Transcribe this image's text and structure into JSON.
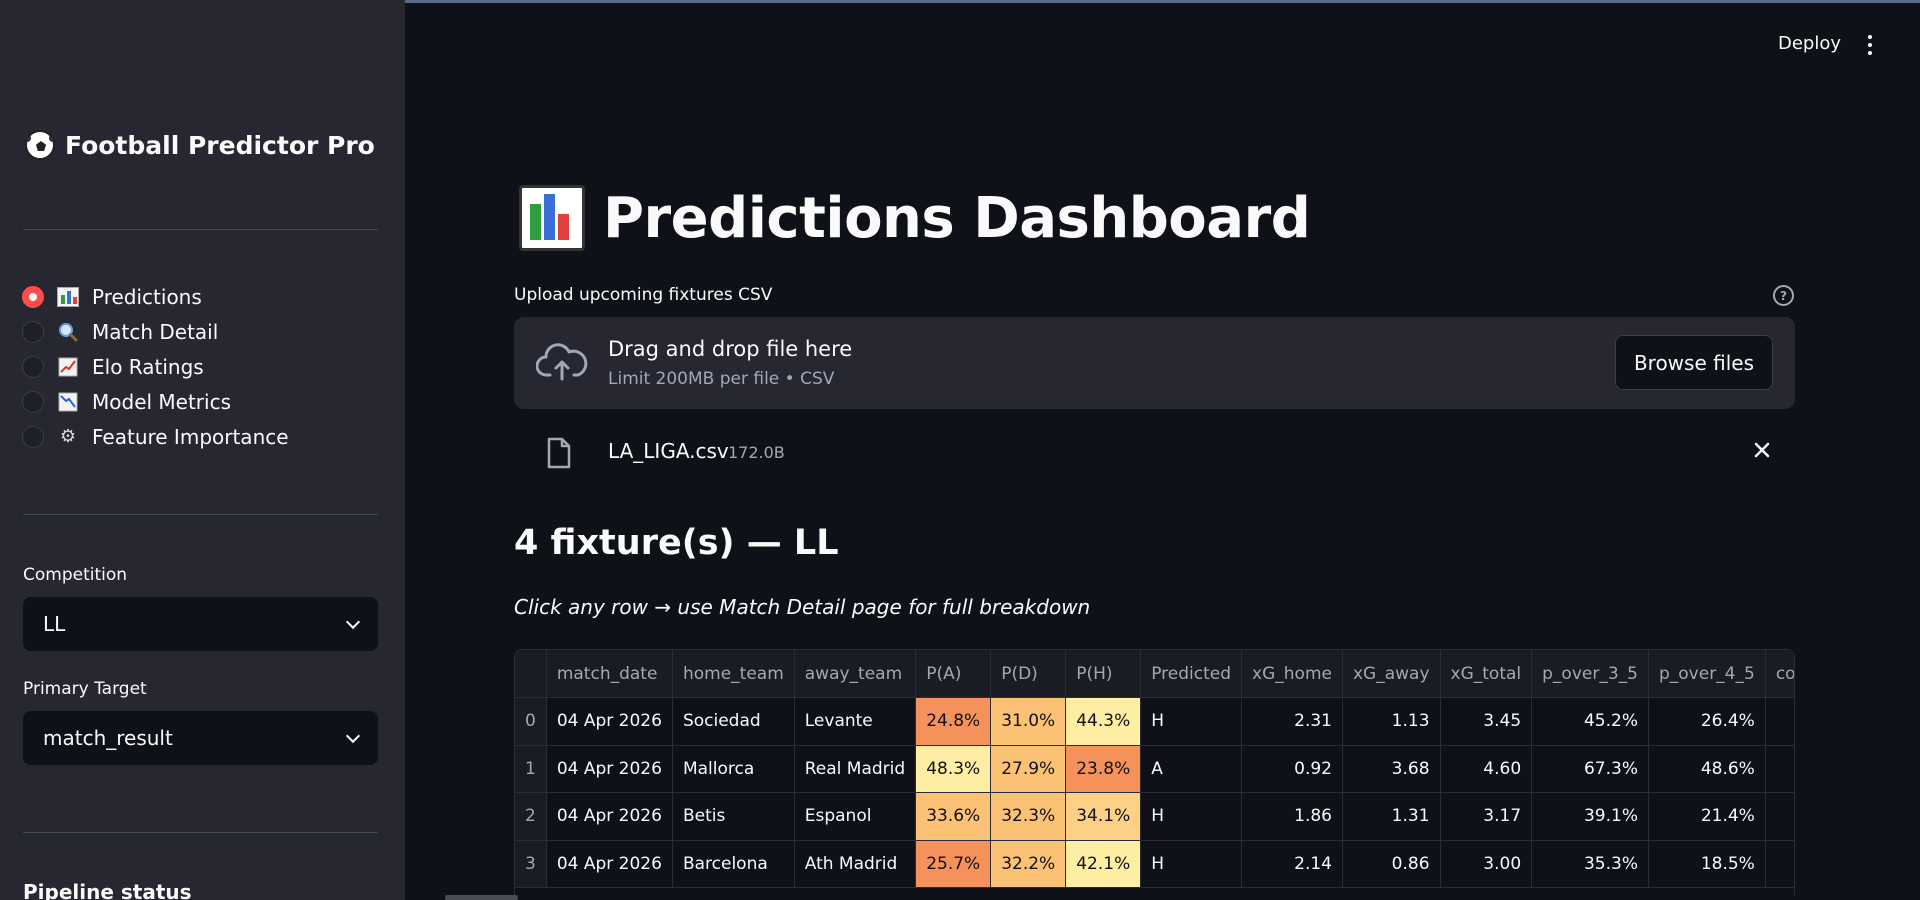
{
  "app": {
    "title": "Football Predictor Pro",
    "icon": "soccer-ball-icon"
  },
  "header": {
    "deploy_label": "Deploy",
    "menu_icon": "kebab-menu-icon"
  },
  "sidebar": {
    "nav": [
      {
        "label": "Predictions",
        "icon": "bar-chart-icon",
        "selected": true
      },
      {
        "label": "Match Detail",
        "icon": "magnifier-icon",
        "selected": false
      },
      {
        "label": "Elo Ratings",
        "icon": "chart-increasing-icon",
        "selected": false
      },
      {
        "label": "Model Metrics",
        "icon": "chart-decreasing-icon",
        "selected": false
      },
      {
        "label": "Feature Importance",
        "icon": "gear-icon",
        "selected": false
      }
    ],
    "competition": {
      "label": "Competition",
      "value": "LL"
    },
    "primary_target": {
      "label": "Primary Target",
      "value": "match_result"
    },
    "pipeline_status": "Pipeline status"
  },
  "main": {
    "title": "Predictions Dashboard",
    "title_icon": "bar-chart-icon",
    "uploader": {
      "label": "Upload upcoming fixtures CSV",
      "drop_title": "Drag and drop file here",
      "drop_sub": "Limit 200MB per file • CSV",
      "browse_label": "Browse files"
    },
    "file": {
      "name": "LA_LIGA.csv",
      "size": "172.0B"
    },
    "section_heading": "4 fixture(s) — LL",
    "caption": "Click any row → use Match Detail page for full breakdown",
    "table": {
      "columns": [
        "",
        "match_date",
        "home_team",
        "away_team",
        "P(A)",
        "P(D)",
        "P(H)",
        "Predicted",
        "xG_home",
        "xG_away",
        "xG_total",
        "p_over_3_5",
        "p_over_4_5",
        "co"
      ],
      "rows": [
        [
          "0",
          "04 Apr 2026",
          "Sociedad",
          "Levante",
          "24.8%",
          "31.0%",
          "44.3%",
          "H",
          "2.31",
          "1.13",
          "3.45",
          "45.2%",
          "26.4%",
          ""
        ],
        [
          "1",
          "04 Apr 2026",
          "Mallorca",
          "Real Madrid",
          "48.3%",
          "27.9%",
          "23.8%",
          "A",
          "0.92",
          "3.68",
          "4.60",
          "67.3%",
          "48.6%",
          ""
        ],
        [
          "2",
          "04 Apr 2026",
          "Betis",
          "Espanol",
          "33.6%",
          "32.3%",
          "34.1%",
          "H",
          "1.86",
          "1.31",
          "3.17",
          "39.1%",
          "21.4%",
          ""
        ],
        [
          "3",
          "04 Apr 2026",
          "Barcelona",
          "Ath Madrid",
          "25.7%",
          "32.2%",
          "42.1%",
          "H",
          "2.14",
          "0.86",
          "3.00",
          "35.3%",
          "18.5%",
          ""
        ]
      ],
      "heat_colors": [
        [
          "#f5915b",
          "#fbc175",
          "#fdeea3"
        ],
        [
          "#fdeea3",
          "#fbc175",
          "#f5915b"
        ],
        [
          "#fbc175",
          "#fbc175",
          "#fcd186"
        ],
        [
          "#f5915b",
          "#fbc175",
          "#fdeea3"
        ]
      ]
    }
  },
  "colors": {
    "accent": "#ff4b4b",
    "background": "#0e1117",
    "sidebar": "#262730"
  }
}
